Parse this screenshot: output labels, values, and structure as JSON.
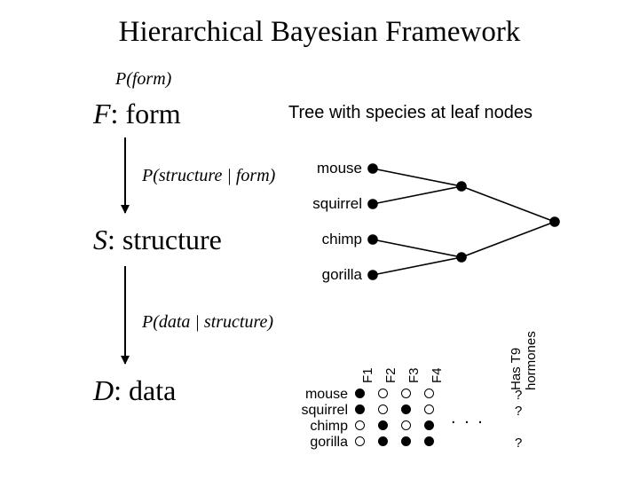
{
  "title": "Hierarchical Bayesian Framework",
  "labels": {
    "p_form": "P(form)",
    "f_form_it": "F",
    "f_form_rest": ": form",
    "tree_caption": "Tree with species at leaf nodes",
    "p_sf": "P(structure | form)",
    "s_struct_it": "S",
    "s_struct_rest": ": structure",
    "p_ds": "P(data | structure)",
    "d_data_it": "D",
    "d_data_rest": ": data"
  },
  "tree": {
    "leaves": [
      "mouse",
      "squirrel",
      "chimp",
      "gorilla"
    ],
    "node_color": "#000000",
    "line_width": 1.4
  },
  "matrix": {
    "columns": [
      "F1",
      "F2",
      "F3",
      "F4"
    ],
    "extra_col": "Has T9\nhormones",
    "rows": [
      "mouse",
      "squirrel",
      "chimp",
      "gorilla"
    ],
    "cells": [
      [
        1,
        0,
        0,
        0
      ],
      [
        1,
        0,
        1,
        0
      ],
      [
        0,
        1,
        0,
        1
      ],
      [
        0,
        1,
        1,
        1
      ]
    ],
    "extra_cells": [
      "?",
      "?",
      "",
      "?"
    ],
    "ellipsis": ". . ."
  },
  "style": {
    "bg": "#ffffff",
    "fg": "#000000"
  }
}
